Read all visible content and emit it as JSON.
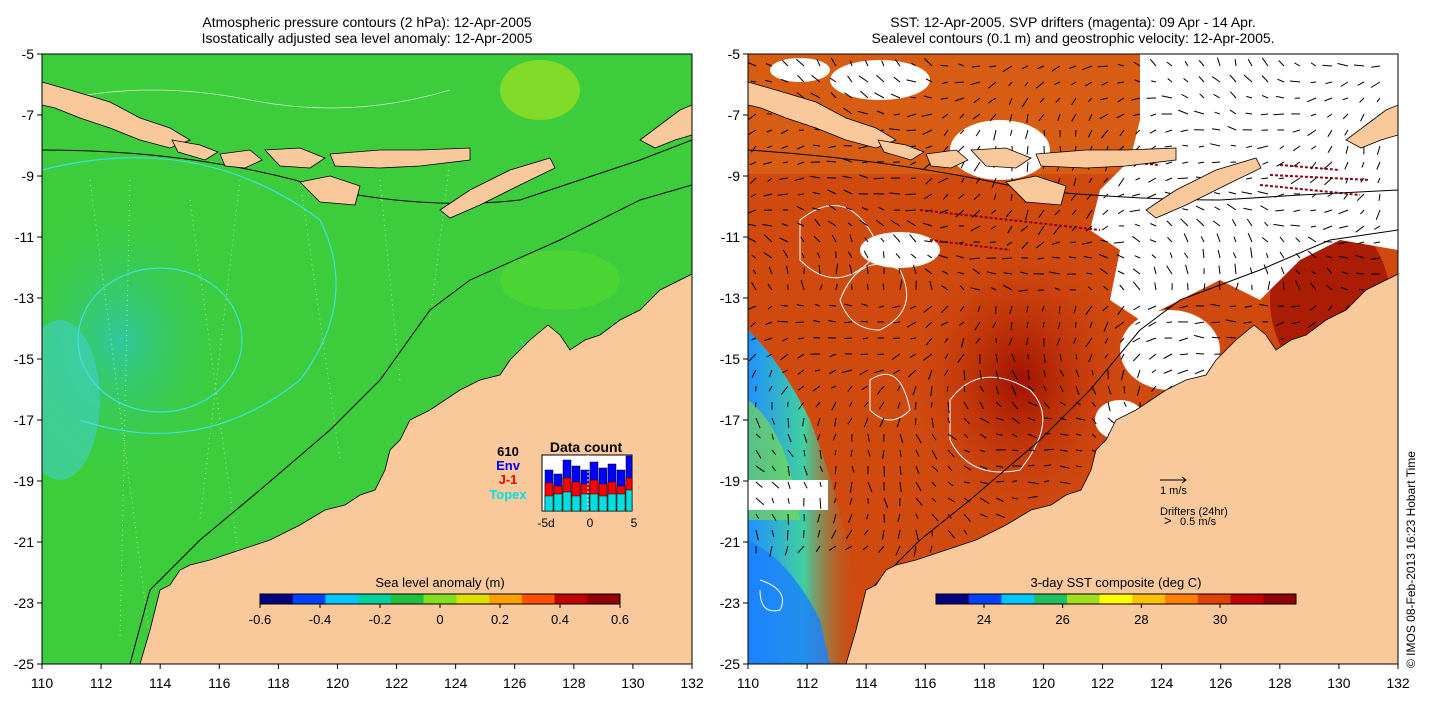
{
  "left_panel": {
    "title_line1": "Atmospheric pressure contours (2 hPa): 12-Apr-2005",
    "title_line2": "Isostatically adjusted sea level anomaly: 12-Apr-2005",
    "colorbar_label": "Sea level anomaly (m)",
    "colorbar_ticks": [
      "-0.6",
      "-0.4",
      "-0.2",
      "0",
      "0.2",
      "0.4",
      "0.6"
    ],
    "colorbar_colors": [
      "#00007f",
      "#0040ff",
      "#00c8ff",
      "#00d0a0",
      "#20c040",
      "#80e020",
      "#e0e000",
      "#ffa000",
      "#ff5000",
      "#c00000",
      "#900000"
    ],
    "inset": {
      "title": "Data count",
      "count": "610",
      "legend": [
        {
          "label": "Env",
          "color": "#0000ff"
        },
        {
          "label": "J-1",
          "color": "#ff0000"
        },
        {
          "label": "Topex",
          "color": "#00e0e0"
        }
      ],
      "x_ticks": [
        "-5d",
        "0",
        "5"
      ]
    }
  },
  "right_panel": {
    "title_line1": "SST: 12-Apr-2005. SVP drifters (magenta): 09 Apr - 14 Apr.",
    "title_line2": "Sealevel contours (0.1 m) and geostrophic velocity: 12-Apr-2005.",
    "colorbar_label": "3-day SST composite (deg C)",
    "colorbar_ticks": [
      "24",
      "26",
      "28",
      "30"
    ],
    "colorbar_colors": [
      "#00007f",
      "#0040ff",
      "#00c8ff",
      "#20c060",
      "#a0e020",
      "#ffff00",
      "#ffc000",
      "#ff8000",
      "#e04000",
      "#c00000",
      "#900000"
    ],
    "velocity_scale_label": "1 m/s",
    "drifters_label": "Drifters (24hr)",
    "drifters_scale_label": "0.5 m/s",
    "drifters_marker": ">",
    "drifter_color": "#ff00ff"
  },
  "axes": {
    "y_ticks": [
      "-5",
      "-7",
      "-9",
      "-11",
      "-13",
      "-15",
      "-17",
      "-19",
      "-21",
      "-23",
      "-25"
    ],
    "x_ticks": [
      "110",
      "112",
      "114",
      "116",
      "118",
      "120",
      "122",
      "124",
      "126",
      "128",
      "130",
      "132"
    ]
  },
  "colors": {
    "land": "#f9c89b",
    "ocean_sla": "#3ccc3c",
    "ocean_sst": "#d04a10"
  },
  "copyright": "© IMOS 08-Feb-2013 16:23 Hobart Time"
}
